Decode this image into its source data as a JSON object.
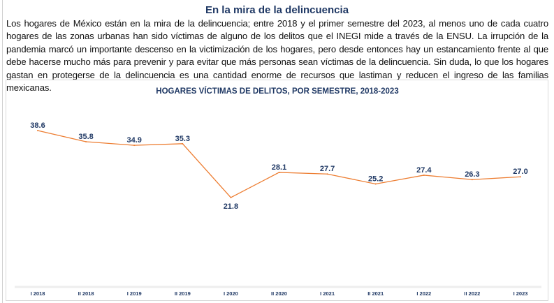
{
  "header": {
    "title": "En la mira de la delincuencia",
    "paragraph": "Los hogares de México están en la mira de la delincuencia; entre 2018 y el primer semestre del 2023, al menos uno de cada cuatro hogares de las zonas urbanas han sido víctimas de alguno de los delitos que el INEGI mide a través de la ENSU. La irrupción de la pandemia marcó un importante descenso en la victimización de los hogares, pero desde entonces hay un estancamiento frente al que debe hacerse mucho más para prevenir y para evitar que más personas sean víctimas de la delincuencia. Sin duda, lo que los hogares gastan en protegerse de la delincuencia es una cantidad enorme de recursos que lastiman y reducen el ingreso de las familias mexicanas."
  },
  "chart_data": {
    "type": "line",
    "title": "HOGARES VÍCTIMAS DE DELITOS, POR SEMESTRE, 2018-2023",
    "categories": [
      "I 2018",
      "II 2018",
      "I 2019",
      "II 2019",
      "I 2020",
      "II 2020",
      "I 2021",
      "II 2021",
      "I 2022",
      "II 2022",
      "I 2023"
    ],
    "values": [
      38.6,
      35.8,
      34.9,
      35.3,
      21.8,
      28.1,
      27.7,
      25.2,
      27.4,
      26.3,
      27.0
    ],
    "value_labels": [
      "38.6",
      "35.8",
      "34.9",
      "35.3",
      "21.8",
      "28.1",
      "27.7",
      "25.2",
      "27.4",
      "26.3",
      "27.0"
    ],
    "xlabel": "",
    "ylabel": "",
    "grid": false,
    "line_color": "#ed7d31",
    "label_color": "#1f3864"
  }
}
